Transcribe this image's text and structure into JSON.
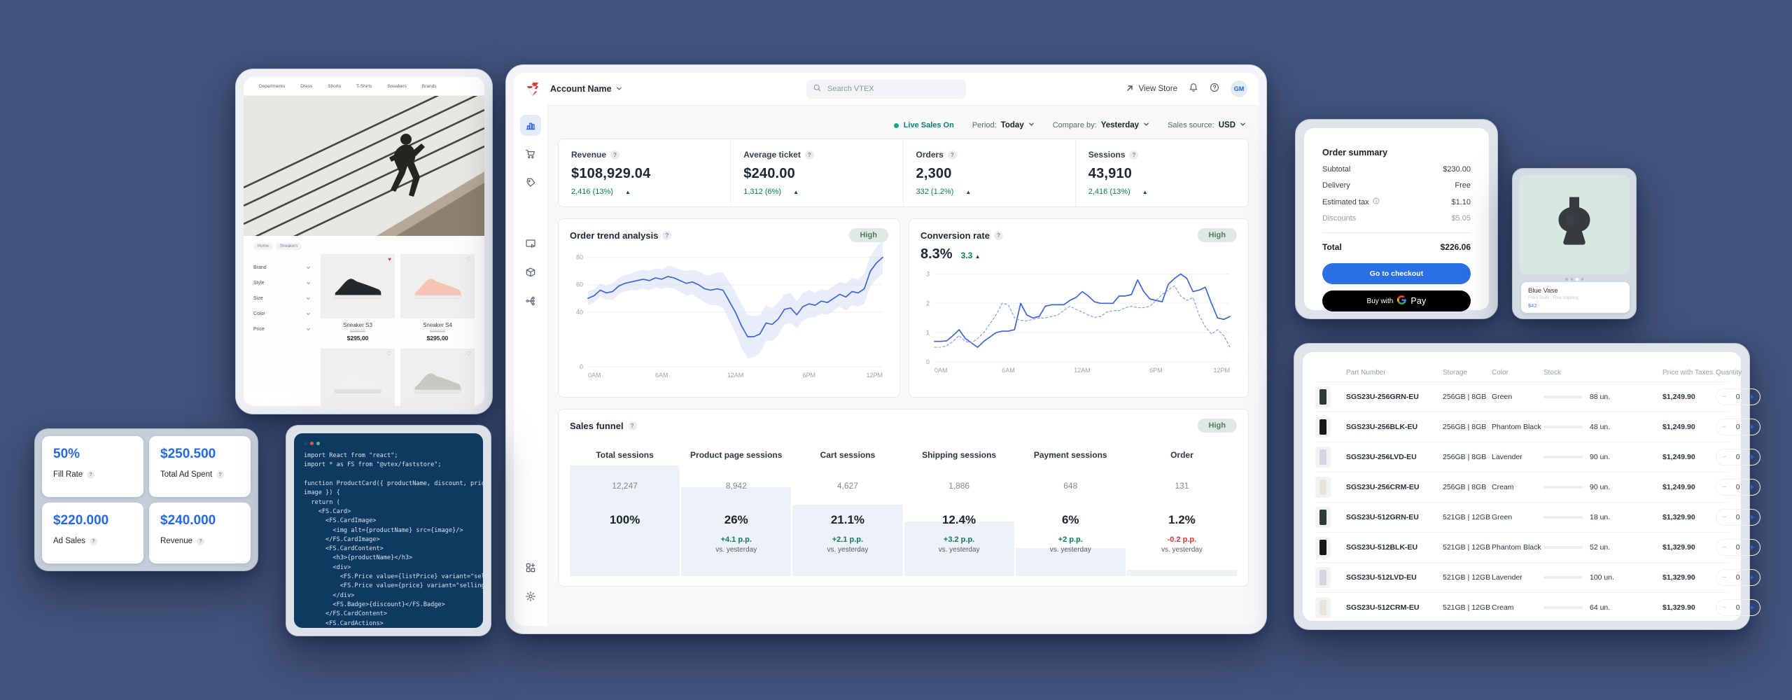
{
  "scene": {
    "background": "#42547C",
    "accent_blue": "#2468e8",
    "green": "#077a5a",
    "red": "#d63638"
  },
  "storefront": {
    "nav": [
      "Departments",
      "Dress",
      "Shorts",
      "T-Shirts",
      "Sneakers",
      "Brands"
    ],
    "breadcrumbs": [
      "Home",
      "Sneakers"
    ],
    "filters": [
      "Brand",
      "Style",
      "Size",
      "Color",
      "Price"
    ],
    "products": [
      {
        "name": "Sneaker S3",
        "old_price": "$390,00",
        "price": "$295,00",
        "heart": "filled",
        "colorway": "black"
      },
      {
        "name": "Sneaker S4",
        "old_price": "$390,00",
        "price": "$295,00",
        "heart": "outline",
        "colorway": "pink"
      },
      {
        "name": "",
        "old_price": "",
        "price": "",
        "heart": "outline",
        "colorway": "white"
      },
      {
        "name": "",
        "old_price": "",
        "price": "",
        "heart": "outline",
        "colorway": "gray"
      }
    ]
  },
  "dashboard": {
    "header": {
      "account": "Account Name",
      "search_placeholder": "Search VTEX",
      "view_store": "View Store",
      "avatar": "GM",
      "icon_names": [
        "vtex-logo",
        "chevron-down",
        "search",
        "arrow-up-right",
        "bell",
        "help",
        "avatar"
      ]
    },
    "sidebar_icon_names": [
      "analytics",
      "orders-cart",
      "promotions-tag",
      "storefront-media",
      "catalog-box",
      "integrations",
      "apps-add",
      "settings-gear"
    ],
    "controls": {
      "live": "Live Sales On",
      "period_label": "Period:",
      "period_value": "Today",
      "compare_label": "Compare by:",
      "compare_value": "Yesterday",
      "source_label": "Sales source:",
      "source_value": "USD"
    },
    "metrics": [
      {
        "label": "Revenue",
        "value": "$108,929.04",
        "delta": "2,416 (13%)"
      },
      {
        "label": "Average ticket",
        "value": "$240.00",
        "delta": "1,312 (6%)"
      },
      {
        "label": "Orders",
        "value": "2,300",
        "delta": "332 (1.2%)"
      },
      {
        "label": "Sessions",
        "value": "43,910",
        "delta": "2,416 (13%)"
      }
    ],
    "trend_card": {
      "title": "Order trend analysis",
      "badge": "High"
    },
    "conversion_card": {
      "title": "Conversion rate",
      "badge": "High",
      "value": "8.3%",
      "delta": "3.3"
    },
    "funnel": {
      "title": "Sales funnel",
      "badge": "High",
      "step_fractions": [
        0.16,
        0.32,
        0.45,
        0.58,
        0.78,
        0.94
      ],
      "columns": [
        {
          "label": "Total sessions",
          "count": "12,247",
          "percent": "100%",
          "delta": "",
          "dir": "",
          "vs": ""
        },
        {
          "label": "Product page sessions",
          "count": "8,942",
          "percent": "26%",
          "delta": "+4.1 p.p.",
          "dir": "up",
          "vs": "vs. yesterday"
        },
        {
          "label": "Cart sessions",
          "count": "4,627",
          "percent": "21.1%",
          "delta": "+2.1 p.p.",
          "dir": "up",
          "vs": "vs. yesterday"
        },
        {
          "label": "Shipping sessions",
          "count": "1,886",
          "percent": "12.4%",
          "delta": "+3.2 p.p.",
          "dir": "up",
          "vs": "vs. yesterday"
        },
        {
          "label": "Payment sessions",
          "count": "648",
          "percent": "6%",
          "delta": "+2 p.p.",
          "dir": "up",
          "vs": "vs. yesterday"
        },
        {
          "label": "Order",
          "count": "131",
          "percent": "1.2%",
          "delta": "-0.2 p.p.",
          "dir": "down",
          "vs": "vs. yesterday"
        }
      ]
    }
  },
  "ads_panel": {
    "cards": [
      {
        "value": "50%",
        "label": "Fill Rate"
      },
      {
        "value": "$250.500",
        "label": "Total Ad Spent"
      },
      {
        "value": "$220.000",
        "label": "Ad Sales"
      },
      {
        "value": "$240.000",
        "label": "Revenue"
      }
    ]
  },
  "code_card": {
    "window_dots": [
      "#23486b",
      "#e2574c",
      "#63b981"
    ],
    "lines": [
      "import React from \"react\";",
      "import * as FS from \"@vtex/faststore\";",
      "",
      "function ProductCard({ productName, discount, price,",
      "image }) {",
      "  return (",
      "    <FS.Card>",
      "      <FS.CardImage>",
      "        <img alt={productName} src={image}/>",
      "      </FS.CardImage>",
      "      <FS.CardContent>",
      "        <h3>{productName}</h3>",
      "        <div>",
      "          <FS.Price value={listPrice} variant=\"selling\" />",
      "          <FS.Price value={price} variant=\"selling\" />",
      "        </div>",
      "        <FS.Badge>{discount}</FS.Badge>",
      "      </FS.CardContent>",
      "      <FS.CardActions>"
    ]
  },
  "order_summary": {
    "title": "Order summary",
    "rows": [
      {
        "label": "Subtotal",
        "value": "$230.00",
        "muted": false,
        "info": false
      },
      {
        "label": "Delivery",
        "value": "Free",
        "muted": false,
        "info": false
      },
      {
        "label": "Estimated tax",
        "value": "$1.10",
        "muted": false,
        "info": true
      },
      {
        "label": "Discounts",
        "value": "$5.05",
        "muted": true,
        "info": false
      }
    ],
    "total_label": "Total",
    "total_value": "$226.06",
    "checkout_label": "Go to checkout",
    "buy_with": "Buy with",
    "gpay_label": "Pay"
  },
  "vase_card": {
    "name": "Blue Vase",
    "subtitle": "From Store - Free shipping",
    "price": "$42",
    "carousel_dots": 4,
    "active_dot": 2
  },
  "inventory": {
    "headers": [
      "Part Number",
      "Storage",
      "Color",
      "Stock",
      "Price with Taxes",
      "Quantity"
    ],
    "rows": [
      {
        "part": "SGS23U-256GRN-EU",
        "storage": "256GB | 8GB",
        "color": "Green",
        "stock": 88,
        "stock_label": "88 un.",
        "low": false,
        "price": "$1,249.90",
        "qty": "0",
        "thumb": "#2e3a33"
      },
      {
        "part": "SGS23U-256BLK-EU",
        "storage": "256GB | 8GB",
        "color": "Phantom Black",
        "stock": 48,
        "stock_label": "48 un.",
        "low": true,
        "price": "$1,249.90",
        "qty": "0",
        "thumb": "#17181a"
      },
      {
        "part": "SGS23U-256LVD-EU",
        "storage": "256GB | 8GB",
        "color": "Lavender",
        "stock": 90,
        "stock_label": "90 un.",
        "low": false,
        "price": "$1,249.90",
        "qty": "0",
        "thumb": "#d4d5df"
      },
      {
        "part": "SGS23U-256CRM-EU",
        "storage": "256GB | 8GB",
        "color": "Cream",
        "stock": 90,
        "stock_label": "90 un.",
        "low": false,
        "price": "$1,249.90",
        "qty": "0",
        "thumb": "#eae5da"
      },
      {
        "part": "SGS23U-512GRN-EU",
        "storage": "521GB | 12GB",
        "color": "Green",
        "stock": 18,
        "stock_label": "18 un.",
        "low": true,
        "price": "$1,329.90",
        "qty": "0",
        "thumb": "#2e3a33"
      },
      {
        "part": "SGS23U-512BLK-EU",
        "storage": "521GB | 12GB",
        "color": "Phantom Black",
        "stock": 52,
        "stock_label": "52 un.",
        "low": false,
        "price": "$1,329.90",
        "qty": "0",
        "thumb": "#17181a"
      },
      {
        "part": "SGS23U-512LVD-EU",
        "storage": "521GB | 12GB",
        "color": "Lavender",
        "stock": 100,
        "stock_label": "100 un.",
        "low": false,
        "price": "$1,329.90",
        "qty": "0",
        "thumb": "#d4d5df"
      },
      {
        "part": "SGS23U-512CRM-EU",
        "storage": "521GB | 12GB",
        "color": "Cream",
        "stock": 64,
        "stock_label": "64 un.",
        "low": false,
        "price": "$1,329.90",
        "qty": "0",
        "thumb": "#eae5da"
      }
    ]
  },
  "chart_data": [
    {
      "type": "line",
      "title": "Order trend analysis",
      "x_axis_labels": [
        "0AM",
        "6AM",
        "12AM",
        "6PM",
        "12PM"
      ],
      "ylim": [
        0,
        88
      ],
      "yticks": [
        0,
        40,
        60,
        80
      ],
      "grid": true,
      "legend": "none",
      "series": [
        {
          "name": "orders",
          "values": [
            50,
            52,
            56,
            54,
            55,
            59,
            61,
            62,
            63,
            64,
            63,
            65,
            64,
            66,
            65,
            63,
            61,
            62,
            60,
            57,
            56,
            57,
            56,
            48,
            40,
            30,
            22,
            22,
            24,
            32,
            31,
            35,
            42,
            43,
            38,
            44,
            46,
            45,
            48,
            47,
            50,
            53,
            51,
            55,
            54,
            57,
            70,
            76,
            80
          ]
        }
      ],
      "band_delta": [
        5,
        5,
        5,
        5,
        6,
        6,
        6,
        6,
        7,
        7,
        7,
        7,
        7,
        8,
        8,
        8,
        9,
        9,
        10,
        10,
        11,
        12,
        13,
        14,
        15,
        16,
        16,
        15,
        14,
        13,
        12,
        12,
        11,
        11,
        10,
        10,
        10,
        9,
        9,
        9,
        9,
        9,
        10,
        10,
        10,
        11,
        11,
        12,
        12
      ]
    },
    {
      "type": "line",
      "title": "Conversion rate",
      "x_axis_labels": [
        "0AM",
        "6AM",
        "12AM",
        "6PM",
        "12PM"
      ],
      "ylim": [
        0,
        3.25
      ],
      "yticks": [
        0,
        1,
        2,
        3
      ],
      "grid": true,
      "legend": "none",
      "series": [
        {
          "name": "today",
          "style": "solid",
          "values": [
            0.7,
            0.7,
            0.72,
            0.9,
            1.1,
            0.8,
            0.65,
            0.5,
            0.7,
            0.85,
            1.0,
            1.05,
            1.05,
            1.1,
            2.0,
            1.6,
            1.5,
            1.55,
            1.9,
            1.95,
            1.95,
            1.95,
            2.1,
            2.2,
            2.4,
            2.25,
            2.05,
            2.0,
            2.0,
            2.0,
            2.25,
            2.25,
            2.3,
            2.8,
            2.4,
            2.15,
            2.1,
            2.05,
            2.65,
            2.85,
            3.0,
            2.85,
            2.4,
            2.45,
            2.55,
            2.0,
            1.5,
            1.45,
            1.55
          ]
        },
        {
          "name": "yesterday",
          "style": "dashed",
          "values": [
            0.5,
            0.5,
            0.55,
            0.7,
            0.9,
            0.7,
            0.65,
            0.8,
            1.0,
            1.3,
            1.6,
            2.0,
            1.95,
            1.5,
            1.42,
            1.4,
            1.45,
            1.5,
            1.5,
            1.55,
            1.6,
            1.75,
            1.9,
            1.8,
            1.7,
            1.6,
            1.52,
            1.55,
            1.7,
            1.75,
            1.75,
            1.85,
            1.9,
            1.85,
            1.85,
            1.9,
            2.1,
            2.3,
            2.45,
            2.6,
            2.25,
            2.1,
            2.2,
            1.6,
            1.2,
            0.95,
            1.1,
            0.9,
            0.5
          ]
        }
      ]
    }
  ]
}
